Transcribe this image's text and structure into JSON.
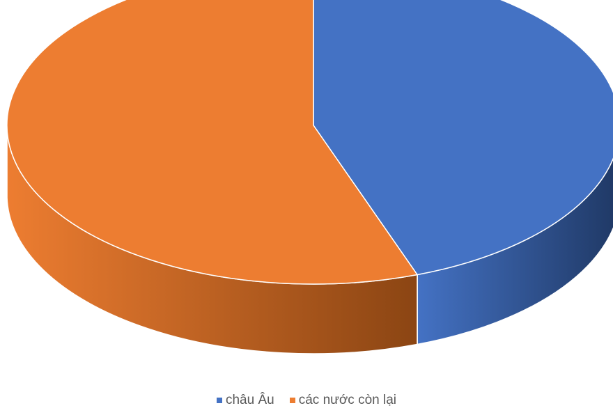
{
  "chart_data": {
    "type": "pie",
    "style": "3d",
    "slices": [
      {
        "label": "châu Âu",
        "value": 44.5,
        "color": "#4472C4",
        "side_color": "#1F3864"
      },
      {
        "label": "các nước còn lại",
        "value": 55.5,
        "color": "#ED7D31",
        "side_color": "#8B4513"
      }
    ],
    "legend": {
      "position": "bottom",
      "items": [
        "châu Âu",
        "các nước còn lại"
      ]
    },
    "start_angle_deg": 90,
    "direction": "clockwise",
    "data_labels": false
  }
}
